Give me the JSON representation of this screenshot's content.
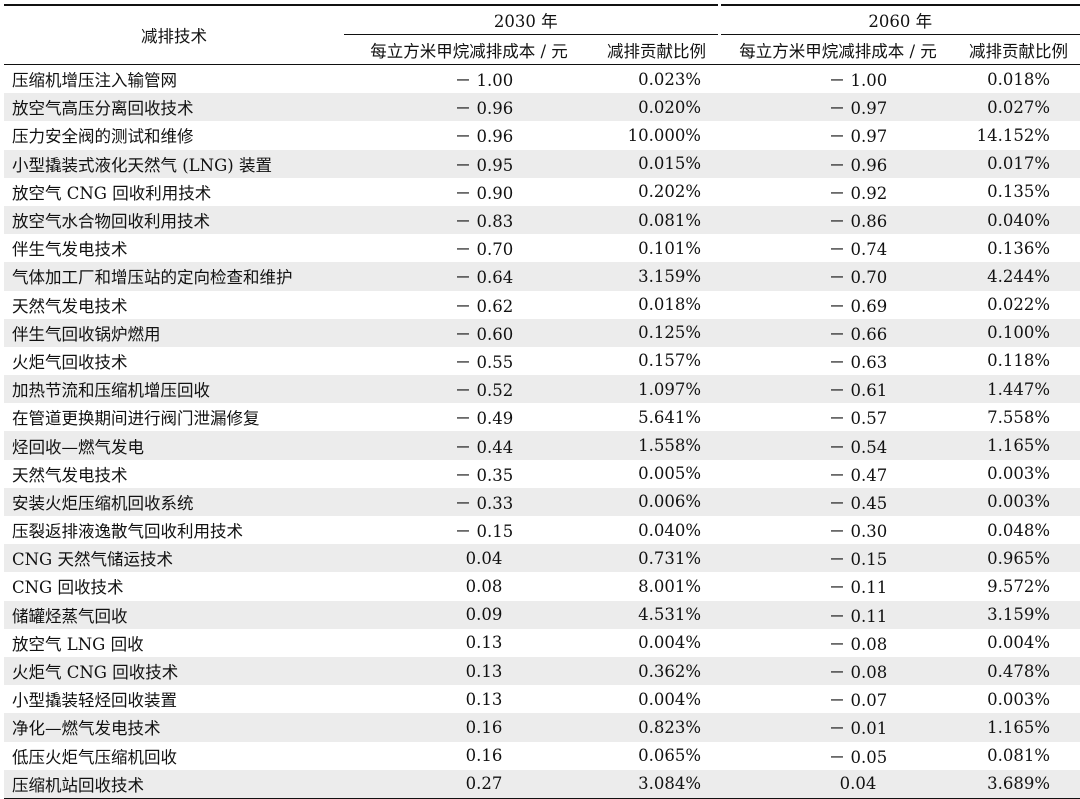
{
  "header": {
    "tech_label": "减排技术",
    "year_2030": "2030 年",
    "year_2060": "2060 年",
    "cost_label": "每立方米甲烷减排成本 / 元",
    "share_label": "减排贡献比例"
  },
  "rows": [
    {
      "name": "压缩机增压注入输管网",
      "c2030": "－ 1.00",
      "p2030": "0.023%",
      "c2060": "－ 1.00",
      "p2060": "0.018%"
    },
    {
      "name": "放空气高压分离回收技术",
      "c2030": "－ 0.96",
      "p2030": "0.020%",
      "c2060": "－ 0.97",
      "p2060": "0.027%"
    },
    {
      "name": "压力安全阀的测试和维修",
      "c2030": "－ 0.96",
      "p2030": "10.000%",
      "c2060": "－ 0.97",
      "p2060": "14.152%"
    },
    {
      "name": "小型撬装式液化天然气 (LNG) 装置",
      "c2030": "－ 0.95",
      "p2030": "0.015%",
      "c2060": "－ 0.96",
      "p2060": "0.017%"
    },
    {
      "name": "放空气 CNG 回收利用技术",
      "c2030": "－ 0.90",
      "p2030": "0.202%",
      "c2060": "－ 0.92",
      "p2060": "0.135%"
    },
    {
      "name": "放空气水合物回收利用技术",
      "c2030": "－ 0.83",
      "p2030": "0.081%",
      "c2060": "－ 0.86",
      "p2060": "0.040%"
    },
    {
      "name": "伴生气发电技术",
      "c2030": "－ 0.70",
      "p2030": "0.101%",
      "c2060": "－ 0.74",
      "p2060": "0.136%"
    },
    {
      "name": "气体加工厂和增压站的定向检查和维护",
      "c2030": "－ 0.64",
      "p2030": "3.159%",
      "c2060": "－ 0.70",
      "p2060": "4.244%"
    },
    {
      "name": "天然气发电技术",
      "c2030": "－ 0.62",
      "p2030": "0.018%",
      "c2060": "－ 0.69",
      "p2060": "0.022%"
    },
    {
      "name": "伴生气回收锅炉燃用",
      "c2030": "－ 0.60",
      "p2030": "0.125%",
      "c2060": "－ 0.66",
      "p2060": "0.100%"
    },
    {
      "name": "火炬气回收技术",
      "c2030": "－ 0.55",
      "p2030": "0.157%",
      "c2060": "－ 0.63",
      "p2060": "0.118%"
    },
    {
      "name": "加热节流和压缩机增压回收",
      "c2030": "－ 0.52",
      "p2030": "1.097%",
      "c2060": "－ 0.61",
      "p2060": "1.447%"
    },
    {
      "name": "在管道更换期间进行阀门泄漏修复",
      "c2030": "－ 0.49",
      "p2030": "5.641%",
      "c2060": "－ 0.57",
      "p2060": "7.558%"
    },
    {
      "name": "烃回收—燃气发电",
      "c2030": "－ 0.44",
      "p2030": "1.558%",
      "c2060": "－ 0.54",
      "p2060": "1.165%"
    },
    {
      "name": "天然气发电技术",
      "c2030": "－ 0.35",
      "p2030": "0.005%",
      "c2060": "－ 0.47",
      "p2060": "0.003%"
    },
    {
      "name": "安装火炬压缩机回收系统",
      "c2030": "－ 0.33",
      "p2030": "0.006%",
      "c2060": "－ 0.45",
      "p2060": "0.003%"
    },
    {
      "name": "压裂返排液逸散气回收利用技术",
      "c2030": "－ 0.15",
      "p2030": "0.040%",
      "c2060": "－ 0.30",
      "p2060": "0.048%"
    },
    {
      "name": "CNG 天然气储运技术",
      "c2030": "0.04",
      "p2030": "0.731%",
      "c2060": "－ 0.15",
      "p2060": "0.965%"
    },
    {
      "name": "CNG 回收技术",
      "c2030": "0.08",
      "p2030": "8.001%",
      "c2060": "－ 0.11",
      "p2060": "9.572%"
    },
    {
      "name": "储罐烃蒸气回收",
      "c2030": "0.09",
      "p2030": "4.531%",
      "c2060": "－ 0.11",
      "p2060": "3.159%"
    },
    {
      "name": "放空气 LNG 回收",
      "c2030": "0.13",
      "p2030": "0.004%",
      "c2060": "－ 0.08",
      "p2060": "0.004%"
    },
    {
      "name": "火炬气 CNG 回收技术",
      "c2030": "0.13",
      "p2030": "0.362%",
      "c2060": "－ 0.08",
      "p2060": "0.478%"
    },
    {
      "name": "小型撬装轻烃回收装置",
      "c2030": "0.13",
      "p2030": "0.004%",
      "c2060": "－ 0.07",
      "p2060": "0.003%"
    },
    {
      "name": "净化—燃气发电技术",
      "c2030": "0.16",
      "p2030": "0.823%",
      "c2060": "－ 0.01",
      "p2060": "1.165%"
    },
    {
      "name": "低压火炬气压缩机回收",
      "c2030": "0.16",
      "p2030": "0.065%",
      "c2060": "－ 0.05",
      "p2060": "0.081%"
    },
    {
      "name": "压缩机站回收技术",
      "c2030": "0.27",
      "p2030": "3.084%",
      "c2060": "0.04",
      "p2060": "3.689%"
    }
  ]
}
